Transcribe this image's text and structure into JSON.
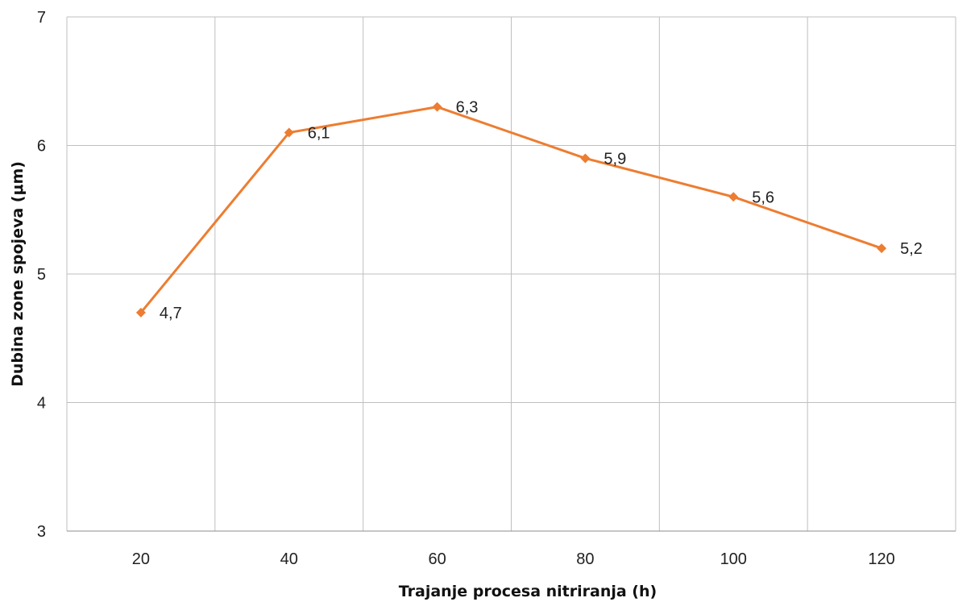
{
  "chart_data": {
    "type": "line",
    "xlabel": "Trajanje procesa nitriranja (h)",
    "ylabel": "Dubina zone spojeva (μm)",
    "categories": [
      "20",
      "40",
      "60",
      "80",
      "100",
      "120"
    ],
    "series": [
      {
        "values": [
          4.7,
          6.1,
          6.3,
          5.9,
          5.6,
          5.2
        ],
        "labels": [
          "4,7",
          "6,1",
          "6,3",
          "5,9",
          "5,6",
          "5,2"
        ],
        "color": "#ED7D31",
        "marker": "diamond"
      }
    ],
    "ylim": [
      3,
      7
    ],
    "yticks": [
      "3",
      "4",
      "5",
      "6",
      "7"
    ],
    "grid": true,
    "legend": "none"
  }
}
